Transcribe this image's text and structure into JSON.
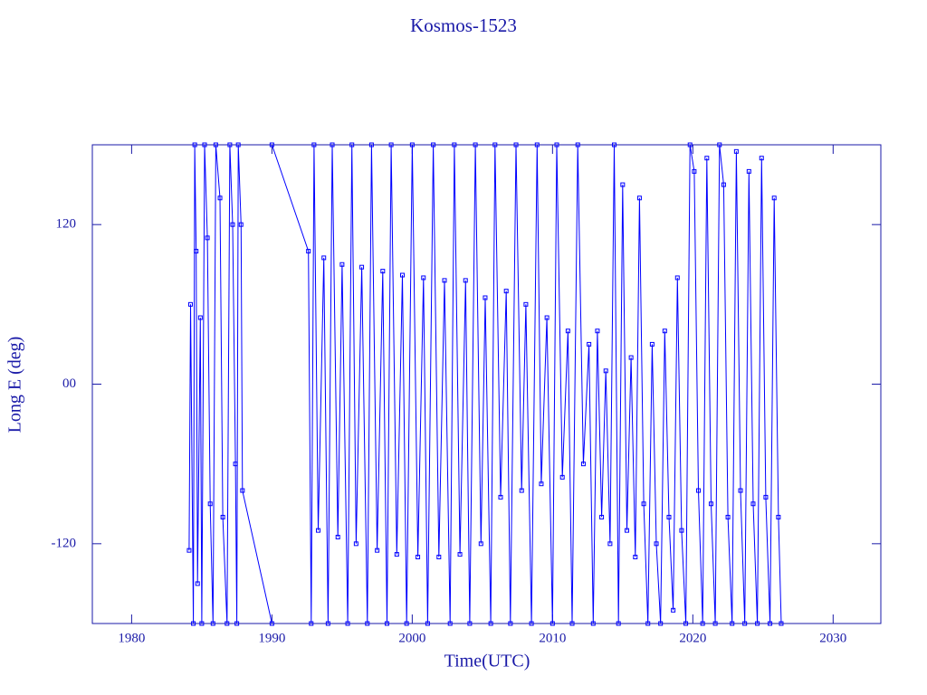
{
  "chart_data": {
    "type": "line",
    "title": "Kosmos-1523",
    "x_label": "Time(UTC)",
    "y_label": "Long E (deg)",
    "xlim": [
      1977.2,
      2033.4
    ],
    "ylim": [
      -180,
      180
    ],
    "xticks": [
      1980,
      1990,
      2000,
      2010,
      2020,
      2030
    ],
    "yticks": [
      -120,
      {
        "value": 0,
        "label": "00"
      },
      120
    ],
    "color": "#0000ff",
    "x": [
      1984.1,
      1984.2,
      1984.4,
      1984.5,
      1984.6,
      1984.7,
      1984.9,
      1985.0,
      1985.2,
      1985.4,
      1985.6,
      1985.8,
      1986.0,
      1986.3,
      1986.5,
      1986.8,
      1987.0,
      1987.2,
      1987.4,
      1987.5,
      1987.6,
      1987.8,
      1987.9,
      1990.0,
      1990.0,
      1990.0,
      1992.6,
      1992.8,
      1993.0,
      1993.3,
      1993.7,
      1994.0,
      1994.3,
      1994.7,
      1995.0,
      1995.4,
      1995.7,
      1996.0,
      1996.4,
      1996.8,
      1997.1,
      1997.5,
      1997.9,
      1998.2,
      1998.5,
      1998.9,
      1999.3,
      1999.6,
      2000.0,
      2000.4,
      2000.8,
      2001.1,
      2001.5,
      2001.9,
      2002.3,
      2002.7,
      2003.0,
      2003.4,
      2003.8,
      2004.1,
      2004.5,
      2004.9,
      2005.2,
      2005.6,
      2005.9,
      2006.3,
      2006.7,
      2007.0,
      2007.4,
      2007.8,
      2008.1,
      2008.5,
      2008.9,
      2009.2,
      2009.6,
      2010.0,
      2010.3,
      2010.7,
      2011.1,
      2011.4,
      2011.8,
      2012.2,
      2012.6,
      2012.9,
      2013.2,
      2013.5,
      2013.8,
      2014.1,
      2014.4,
      2014.7,
      2015.0,
      2015.3,
      2015.6,
      2015.9,
      2016.2,
      2016.5,
      2016.8,
      2017.1,
      2017.4,
      2017.7,
      2018.0,
      2018.3,
      2018.6,
      2018.9,
      2019.2,
      2019.5,
      2019.8,
      2020.1,
      2020.4,
      2020.7,
      2021.0,
      2021.3,
      2021.6,
      2021.9,
      2022.2,
      2022.5,
      2022.8,
      2023.1,
      2023.4,
      2023.7,
      2024.0,
      2024.3,
      2024.6,
      2024.9,
      2025.2,
      2025.5,
      2025.8,
      2026.1,
      2026.3
    ],
    "values": [
      -125,
      60,
      -180,
      180,
      100,
      -150,
      50,
      -180,
      180,
      110,
      -90,
      -180,
      180,
      140,
      -100,
      -180,
      180,
      120,
      -60,
      -180,
      180,
      120,
      -80,
      -180,
      null,
      180,
      100,
      -180,
      180,
      -110,
      95,
      -180,
      180,
      -115,
      90,
      -180,
      180,
      -120,
      88,
      -180,
      180,
      -125,
      85,
      -180,
      180,
      -128,
      82,
      -180,
      180,
      -130,
      80,
      -180,
      180,
      -130,
      78,
      -180,
      180,
      -128,
      78,
      -180,
      180,
      -120,
      65,
      -180,
      180,
      -85,
      70,
      -180,
      180,
      -80,
      60,
      -180,
      180,
      -75,
      50,
      -180,
      180,
      -70,
      40,
      -180,
      180,
      -60,
      30,
      -180,
      40,
      -100,
      10,
      -120,
      180,
      -180,
      150,
      -110,
      20,
      -130,
      140,
      -90,
      -180,
      30,
      -120,
      -180,
      40,
      -100,
      -170,
      80,
      -110,
      -180,
      180,
      160,
      -80,
      -180,
      170,
      -90,
      -180,
      180,
      150,
      -100,
      -180,
      175,
      -80,
      -180,
      160,
      -90,
      -180,
      170,
      -85,
      -180,
      140,
      -100,
      -180
    ]
  }
}
